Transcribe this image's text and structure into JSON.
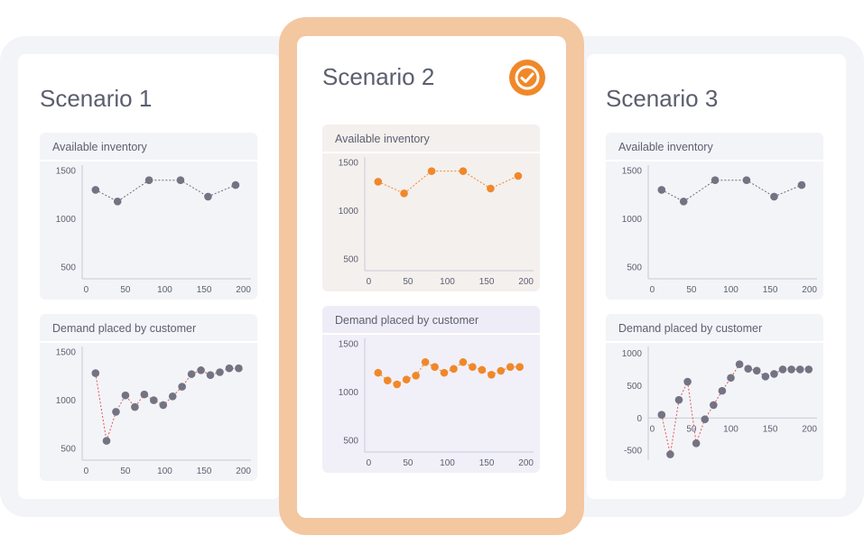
{
  "colors": {
    "grey_point": "#747383",
    "grey_line": "#6a6a78",
    "orange": "#f0882a",
    "red_line": "#e05757",
    "axis": "#c8cad2"
  },
  "icons": {
    "selected": "check-circle-icon"
  },
  "scenarios": [
    {
      "title": "Scenario 1",
      "selected": false,
      "charts": [
        {
          "header": "Available inventory",
          "type": "line",
          "style": "grey",
          "x": [
            12,
            40,
            80,
            120,
            155,
            190
          ],
          "y": [
            1300,
            1180,
            1400,
            1400,
            1230,
            1350
          ],
          "xticks": [
            0,
            50,
            100,
            150,
            200
          ],
          "yticks": [
            500,
            1000,
            1500
          ],
          "xlim": [
            -5,
            205
          ],
          "ylim": [
            380,
            1500
          ]
        },
        {
          "header": "Demand placed by customer",
          "type": "line",
          "style": "demand",
          "x": [
            12,
            26,
            38,
            50,
            62,
            74,
            86,
            98,
            110,
            122,
            134,
            146,
            158,
            170,
            182,
            194
          ],
          "y": [
            1280,
            580,
            880,
            1050,
            930,
            1060,
            1000,
            950,
            1040,
            1140,
            1270,
            1310,
            1260,
            1290,
            1330,
            1330
          ],
          "xticks": [
            0,
            50,
            100,
            150,
            200
          ],
          "yticks": [
            500,
            1000,
            1500
          ],
          "xlim": [
            -5,
            205
          ],
          "ylim": [
            380,
            1500
          ]
        }
      ]
    },
    {
      "title": "Scenario 2",
      "selected": true,
      "charts": [
        {
          "header": "Available inventory",
          "type": "line",
          "style": "orange",
          "x": [
            12,
            45,
            80,
            120,
            155,
            190
          ],
          "y": [
            1300,
            1180,
            1410,
            1410,
            1230,
            1360
          ],
          "xticks": [
            0,
            50,
            100,
            150,
            200
          ],
          "yticks": [
            500,
            1000,
            1500
          ],
          "xlim": [
            -5,
            205
          ],
          "ylim": [
            380,
            1500
          ]
        },
        {
          "header": "Demand placed by customer",
          "type": "line",
          "style": "orange",
          "x": [
            12,
            24,
            36,
            48,
            60,
            72,
            84,
            96,
            108,
            120,
            132,
            144,
            156,
            168,
            180,
            192
          ],
          "y": [
            1200,
            1120,
            1080,
            1130,
            1170,
            1310,
            1260,
            1200,
            1240,
            1310,
            1260,
            1230,
            1180,
            1220,
            1260,
            1260
          ],
          "xticks": [
            0,
            50,
            100,
            150,
            200
          ],
          "yticks": [
            500,
            1000,
            1500
          ],
          "xlim": [
            -5,
            205
          ],
          "ylim": [
            380,
            1500
          ]
        }
      ]
    },
    {
      "title": "Scenario 3",
      "selected": false,
      "charts": [
        {
          "header": "Available inventory",
          "type": "line",
          "style": "grey",
          "x": [
            12,
            40,
            80,
            120,
            155,
            190
          ],
          "y": [
            1300,
            1180,
            1400,
            1400,
            1230,
            1350
          ],
          "xticks": [
            0,
            50,
            100,
            150,
            200
          ],
          "yticks": [
            500,
            1000,
            1500
          ],
          "xlim": [
            -5,
            205
          ],
          "ylim": [
            380,
            1500
          ]
        },
        {
          "header": "Demand placed by customer",
          "type": "line",
          "style": "demand",
          "x": [
            12,
            23,
            34,
            45,
            56,
            67,
            78,
            89,
            100,
            111,
            122,
            133,
            144,
            155,
            166,
            177,
            188,
            199
          ],
          "y": [
            50,
            -560,
            280,
            560,
            -390,
            -20,
            200,
            420,
            620,
            830,
            760,
            730,
            640,
            680,
            750,
            750,
            750,
            750
          ],
          "xticks": [
            0,
            50,
            100,
            150,
            200
          ],
          "yticks": [
            -500,
            0,
            500,
            1000
          ],
          "xlim": [
            -5,
            205
          ],
          "ylim": [
            -650,
            1020
          ],
          "zero_line": true
        }
      ]
    }
  ]
}
